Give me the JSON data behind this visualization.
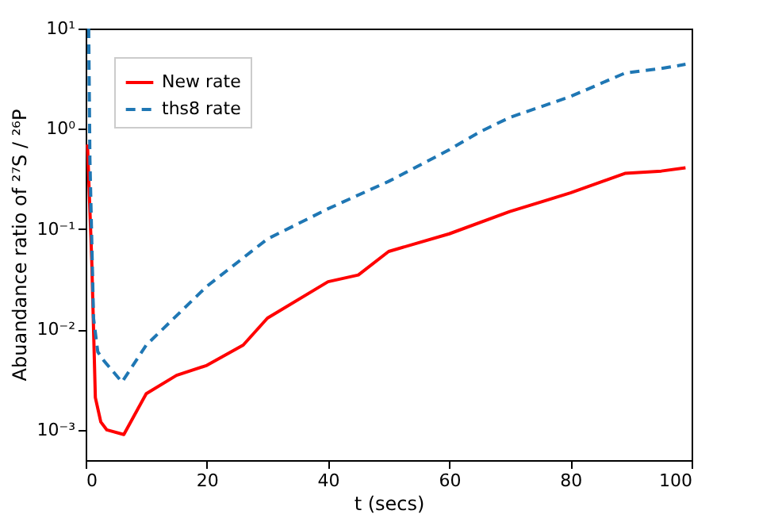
{
  "chart_data": {
    "type": "line",
    "xlabel": "t (secs)",
    "ylabel": "Abuandance ratio of ²⁷S / ²⁶P",
    "log": "y",
    "grid": false,
    "legend": "top left",
    "xlim": [
      0,
      100
    ],
    "xticks": [
      0,
      20,
      40,
      60,
      80,
      100
    ],
    "ylim": [
      0.0005,
      10
    ],
    "yticks": [
      {
        "value": 0.001,
        "label": "10⁻³"
      },
      {
        "value": 0.01,
        "label": "10⁻²"
      },
      {
        "value": 0.1,
        "label": "10⁻¹"
      },
      {
        "value": 1,
        "label": "10⁰"
      },
      {
        "value": 10,
        "label": "10¹"
      }
    ],
    "series": [
      {
        "name": "New rate",
        "color": "#ff0000",
        "line_style": "solid",
        "x": [
          0.3,
          1,
          1.6,
          2.5,
          3.5,
          6.3,
          10,
          15,
          20,
          26,
          30,
          40,
          45,
          50,
          60,
          70,
          80,
          89,
          95,
          99
        ],
        "values": [
          0.7,
          0.05,
          0.0021,
          0.0012,
          0.001,
          0.0009,
          0.0023,
          0.0035,
          0.0044,
          0.007,
          0.013,
          0.03,
          0.035,
          0.06,
          0.09,
          0.15,
          0.23,
          0.36,
          0.38,
          0.41
        ]
      },
      {
        "name": "ths8 rate",
        "color": "#1f77b4",
        "line_style": "dashed",
        "x": [
          0.5,
          0.7,
          1.3,
          2,
          3,
          6,
          10,
          20,
          30,
          40,
          50,
          55,
          60,
          65,
          70,
          80,
          89,
          95,
          99
        ],
        "values": [
          10,
          0.5,
          0.013,
          0.006,
          0.0049,
          0.003,
          0.007,
          0.027,
          0.08,
          0.16,
          0.3,
          0.43,
          0.62,
          0.93,
          1.3,
          2.1,
          3.6,
          4.0,
          4.4
        ]
      }
    ]
  }
}
